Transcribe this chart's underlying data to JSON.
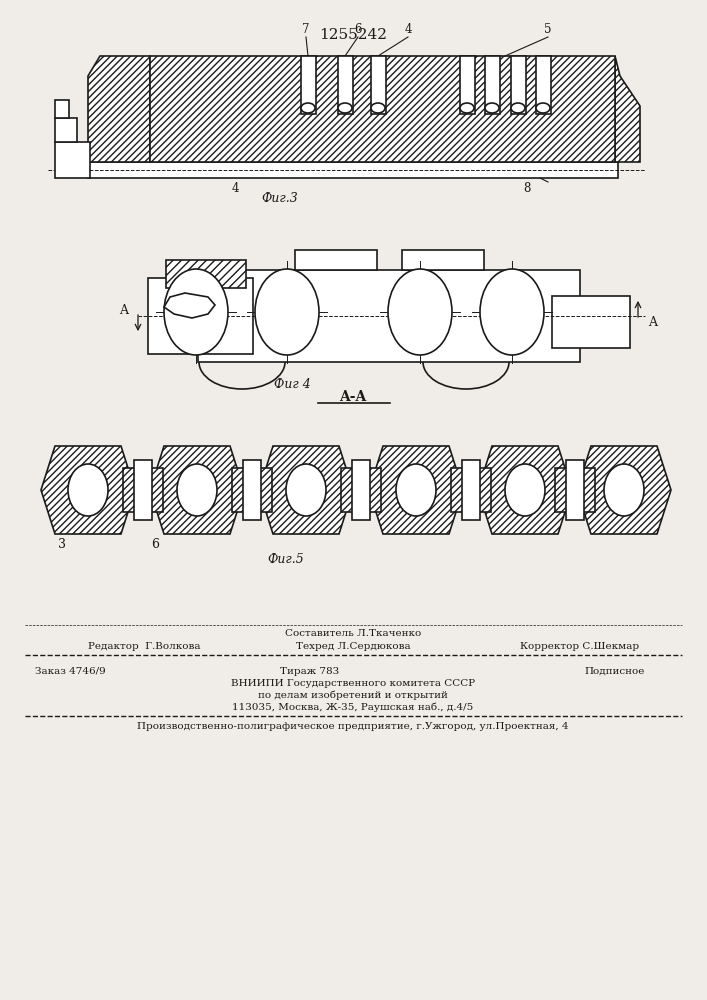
{
  "patent_number": "1255242",
  "bg_color": "#f0ede8",
  "line_color": "#1a1a1a",
  "fig3_label": "Фиг.3",
  "fig4_label": "Фиг 4",
  "fig5_label": "Фиг.5",
  "section_label": "A-A"
}
